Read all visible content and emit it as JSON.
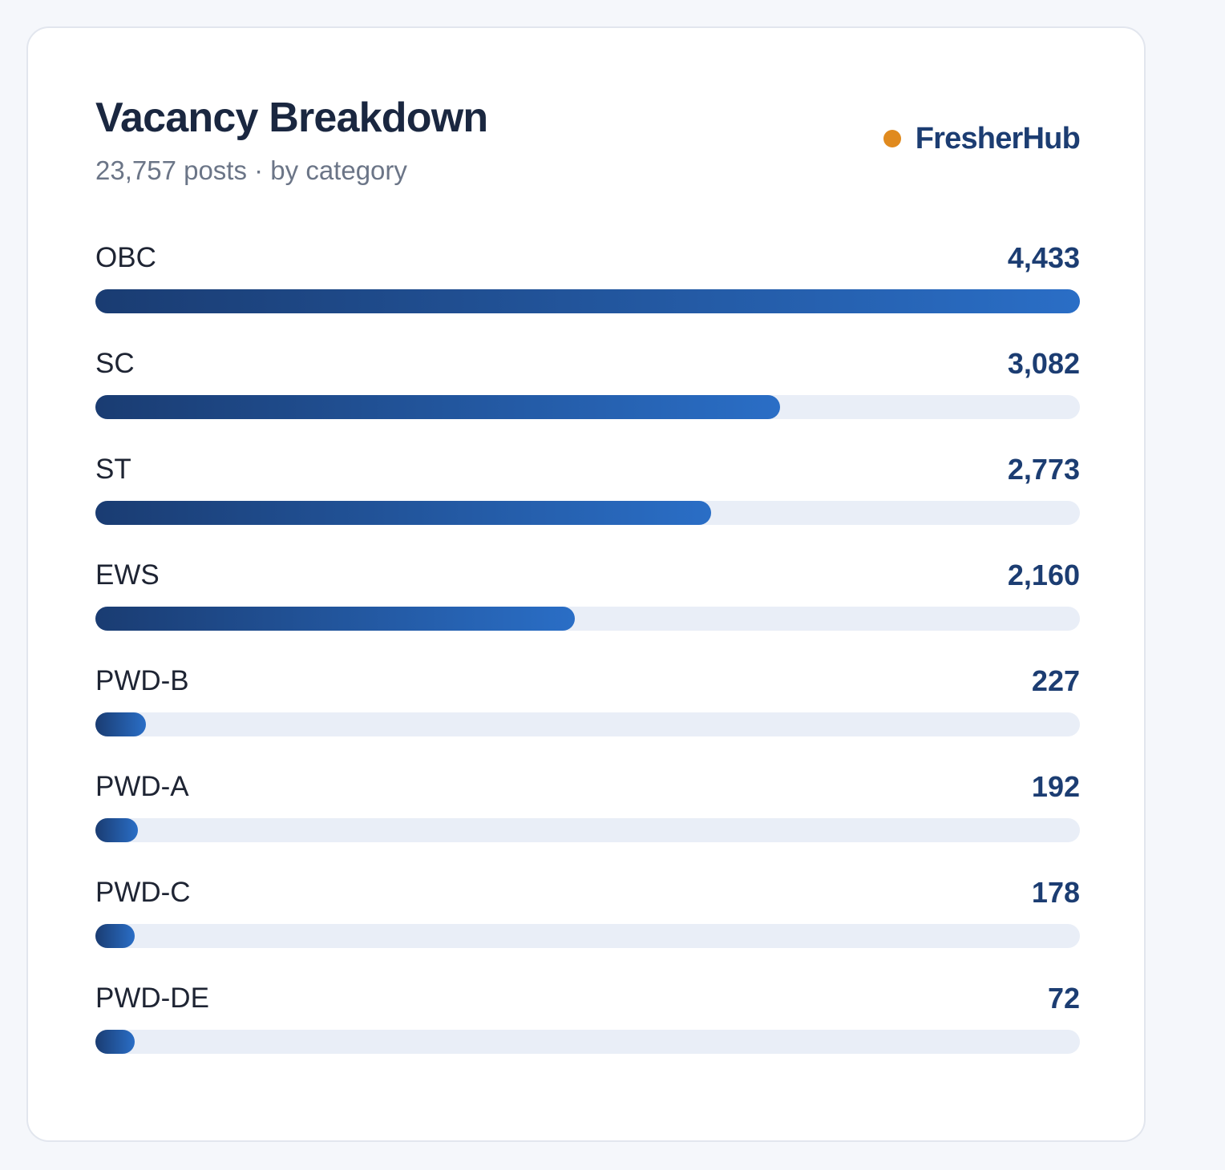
{
  "card": {
    "title": "Vacancy Breakdown",
    "subtitle": "23,757 posts · by category",
    "brand": {
      "name": "FresherHub",
      "dot_color": "#e08a1e",
      "text_color": "#1c3d72"
    }
  },
  "colors": {
    "bar_gradient_start": "#1a3c72",
    "bar_gradient_end": "#2a6ec6",
    "track": "#e9eef7",
    "value_text": "#1c3d72"
  },
  "chart_data": {
    "type": "bar",
    "orientation": "horizontal",
    "title": "Vacancy Breakdown",
    "subtitle": "23,757 posts · by category",
    "total": 23757,
    "categories": [
      "OBC",
      "SC",
      "ST",
      "EWS",
      "PWD-B",
      "PWD-A",
      "PWD-C",
      "PWD-DE"
    ],
    "values": [
      4433,
      3082,
      2773,
      2160,
      227,
      192,
      178,
      72
    ],
    "value_labels": [
      "4,433",
      "3,082",
      "2,773",
      "2,160",
      "227",
      "192",
      "178",
      "72"
    ],
    "xlim": [
      0,
      4433
    ],
    "grid": false,
    "legend": "none"
  },
  "rows": [
    {
      "label": "OBC",
      "value": "4,433"
    },
    {
      "label": "SC",
      "value": "3,082"
    },
    {
      "label": "ST",
      "value": "2,773"
    },
    {
      "label": "EWS",
      "value": "2,160"
    },
    {
      "label": "PWD-B",
      "value": "227"
    },
    {
      "label": "PWD-A",
      "value": "192"
    },
    {
      "label": "PWD-C",
      "value": "178"
    },
    {
      "label": "PWD-DE",
      "value": "72"
    }
  ]
}
